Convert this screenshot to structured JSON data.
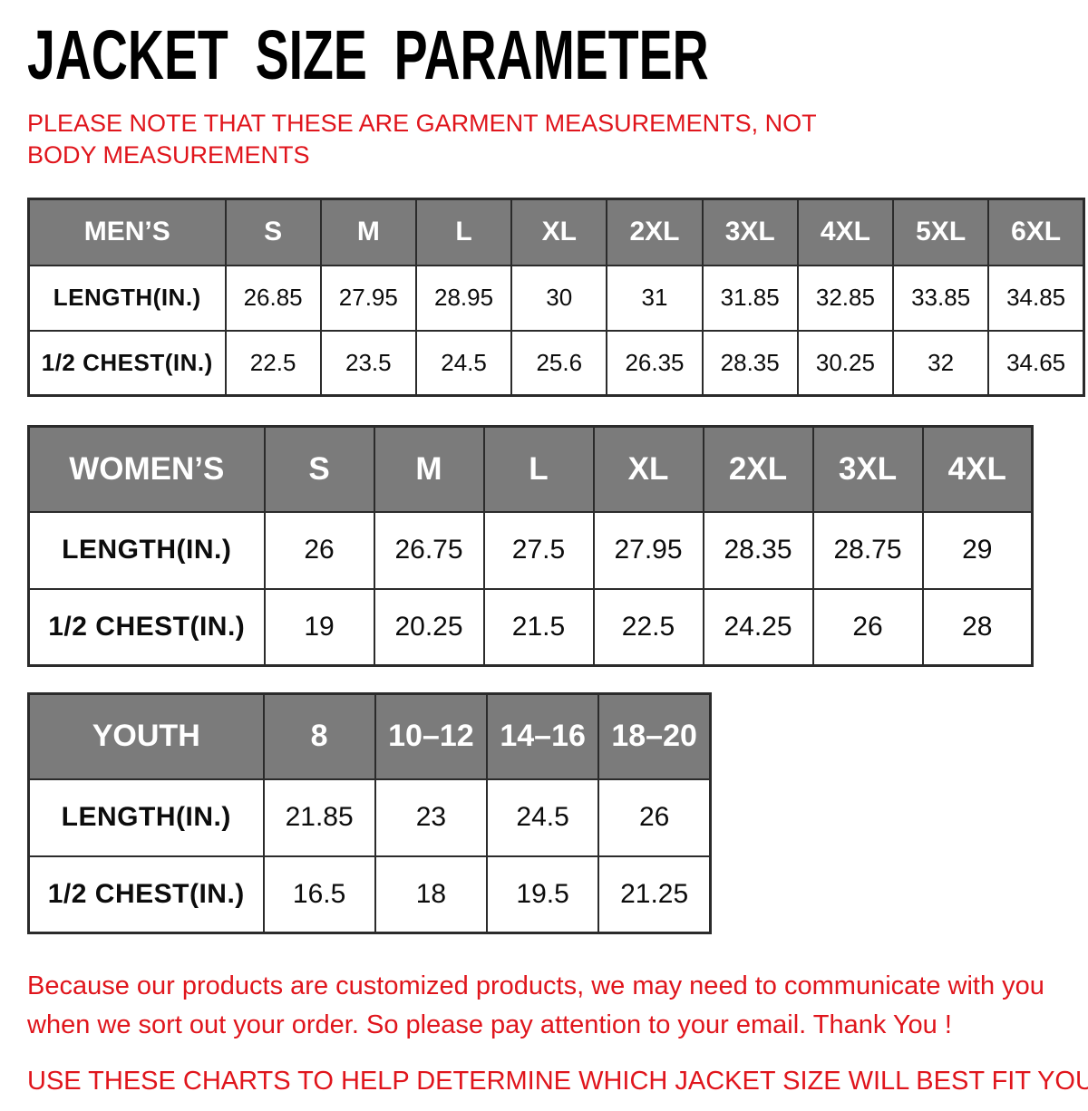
{
  "page": {
    "title": "JACKET SIZE PARAMETER",
    "note": "PLEASE NOTE THAT THESE ARE GARMENT MEASUREMENTS, NOT BODY MEASUREMENTS"
  },
  "colors": {
    "header_bg": "#7b7b7b",
    "header_text": "#ffffff",
    "accent_red": "#e0151c",
    "border": "#2b2b2b",
    "title_black": "#000000"
  },
  "tables": [
    {
      "id": "mens",
      "first_col_width": 217,
      "header": [
        "MEN’S",
        "S",
        "M",
        "L",
        "XL",
        "2XL",
        "3XL",
        "4XL",
        "5XL",
        "6XL"
      ],
      "rows": [
        {
          "label": "LENGTH(IN.)",
          "values": [
            "26.85",
            "27.95",
            "28.95",
            "30",
            "31",
            "31.85",
            "32.85",
            "33.85",
            "34.85"
          ]
        },
        {
          "label": "1/2 CHEST(IN.)",
          "values": [
            "22.5",
            "23.5",
            "24.5",
            "25.6",
            "26.35",
            "28.35",
            "30.25",
            "32",
            "34.65"
          ]
        }
      ]
    },
    {
      "id": "womens",
      "first_col_width": 260,
      "header": [
        "WOMEN’S",
        "S",
        "M",
        "L",
        "XL",
        "2XL",
        "3XL",
        "4XL"
      ],
      "rows": [
        {
          "label": "LENGTH(IN.)",
          "values": [
            "26",
            "26.75",
            "27.5",
            "27.95",
            "28.35",
            "28.75",
            "29"
          ]
        },
        {
          "label": "1/2 CHEST(IN.)",
          "values": [
            "19",
            "20.25",
            "21.5",
            "22.5",
            "24.25",
            "26",
            "28"
          ]
        }
      ]
    },
    {
      "id": "youth",
      "first_col_width": 259,
      "header": [
        "YOUTH",
        "8",
        "10–12",
        "14–16",
        "18–20"
      ],
      "rows": [
        {
          "label": "LENGTH(IN.)",
          "values": [
            "21.85",
            "23",
            "24.5",
            "26"
          ]
        },
        {
          "label": "1/2 CHEST(IN.)",
          "values": [
            "16.5",
            "18",
            "19.5",
            "21.25"
          ]
        }
      ]
    }
  ],
  "footer": {
    "paragraph": "Because our products are customized products, we may need to communicate with you when we sort out your order. So please pay attention to your email. Thank You !",
    "line2": "USE THESE CHARTS TO HELP DETERMINE WHICH JACKET SIZE WILL BEST FIT YOU."
  }
}
